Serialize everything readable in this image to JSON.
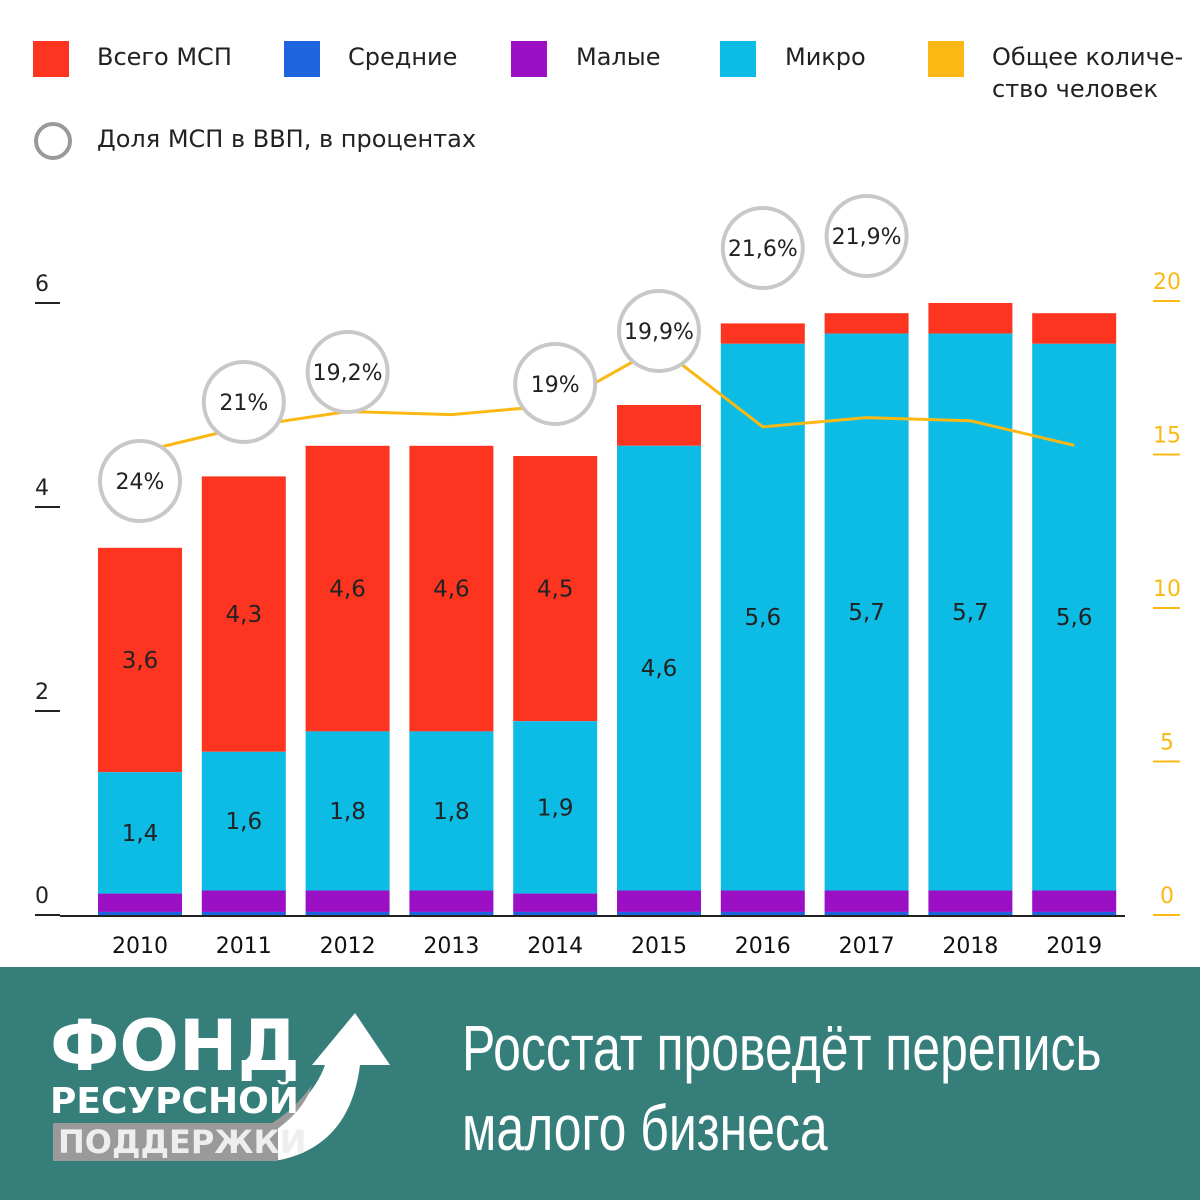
{
  "legend": [
    {
      "label": "Всего МСП",
      "color": "#fd3520"
    },
    {
      "label": "Средние",
      "color": "#1d64de"
    },
    {
      "label": "Малые",
      "color": "#9b10c4"
    },
    {
      "label": "Микро",
      "color": "#0dbce4"
    },
    {
      "label": "Общее количе-",
      "label2": "ство человек",
      "color": "#fbb815"
    },
    {
      "label": "Доля МСП в ВВП, в процентах",
      "color": "#999999"
    }
  ],
  "chart_data": {
    "type": "bar",
    "stacked": true,
    "categories": [
      "2010",
      "2011",
      "2012",
      "2013",
      "2014",
      "2015",
      "2016",
      "2017",
      "2018",
      "2019"
    ],
    "left_axis": {
      "ticks": [
        "0",
        "2",
        "4",
        "6"
      ],
      "ylim": [
        0,
        6.2
      ]
    },
    "right_axis": {
      "ticks": [
        "0",
        "5",
        "10",
        "15",
        "20"
      ],
      "ylim": [
        0,
        20.3
      ]
    },
    "series": [
      {
        "name": "Средние",
        "values": [
          0.03,
          0.03,
          0.03,
          0.03,
          0.03,
          0.03,
          0.03,
          0.03,
          0.03,
          0.03
        ]
      },
      {
        "name": "Малые (cumulative top)",
        "values": [
          0.21,
          0.24,
          0.24,
          0.24,
          0.21,
          0.24,
          0.24,
          0.24,
          0.24,
          0.24
        ]
      },
      {
        "name": "Микро",
        "values": [
          1.4,
          1.6,
          1.8,
          1.8,
          1.9,
          4.6,
          5.6,
          5.7,
          5.7,
          5.6
        ],
        "labels": [
          "1,4",
          "1,6",
          "1,8",
          "1,8",
          "1,9",
          "4,6",
          "5,6",
          "5,7",
          "5,7",
          "5,6"
        ]
      },
      {
        "name": "Всего МСП",
        "values": [
          3.6,
          4.3,
          4.6,
          4.6,
          4.5,
          5.0,
          5.8,
          5.9,
          6.0,
          5.9
        ],
        "labels": [
          "3,6",
          "4,3",
          "4,6",
          "4,6",
          "4,5",
          "",
          "",
          "",
          "",
          ""
        ]
      }
    ],
    "line": {
      "name": "Общее количество человек",
      "values": [
        15.2,
        15.9,
        16.4,
        16.3,
        16.6,
        18.5,
        15.9,
        16.2,
        16.1,
        15.3
      ]
    },
    "gdp_share": [
      "24%",
      "21%",
      "19,2%",
      "",
      "19%",
      "19,9%",
      "21,6%",
      "21,9%",
      "",
      ""
    ]
  },
  "footer": {
    "logo": [
      "ФОНД",
      "РЕСУРСНОЙ",
      "ПОДДЕРЖКИ"
    ],
    "headline1": "Росстат проведёт перепись",
    "headline2": "малого бизнеса"
  }
}
